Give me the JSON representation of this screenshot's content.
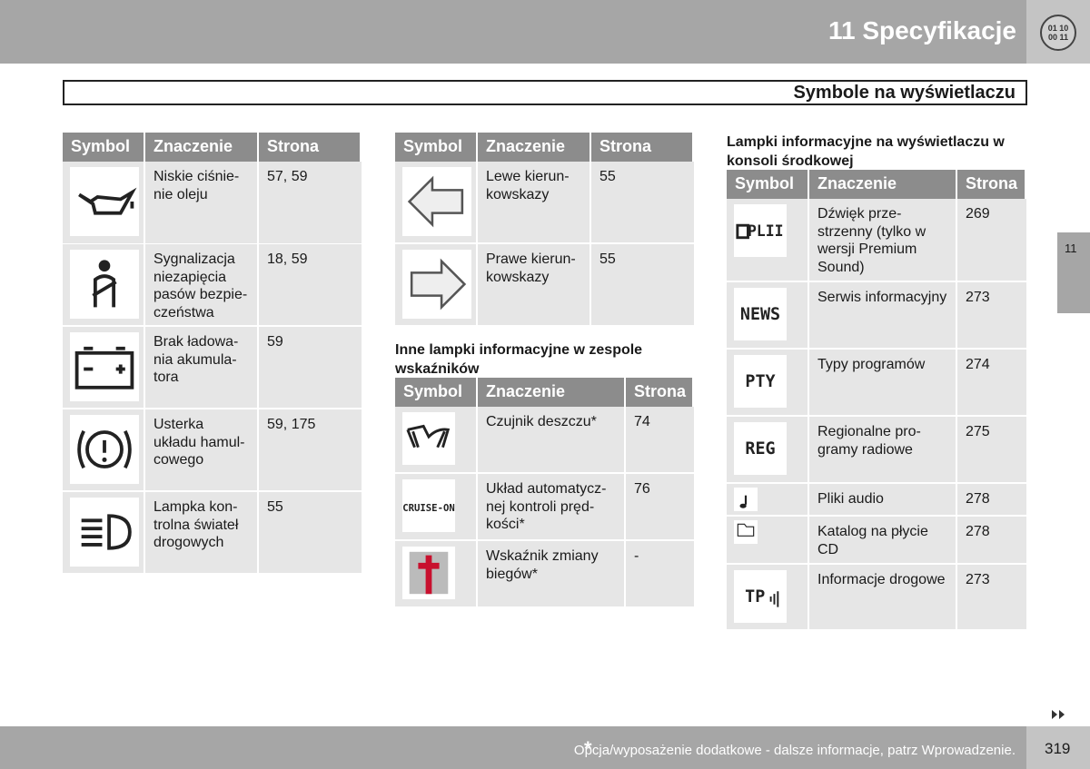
{
  "header": {
    "chapter": "11 Specyfikacje",
    "badge": [
      "01 10",
      "00 11"
    ],
    "section": "Symbole na wyświetlaczu"
  },
  "side_tab": "11",
  "headings": [
    "Inne lampki informacyjne w zespole\nwskaźników",
    "Lampki informacyjne na wyświetlaczu w\nkonsoli środkowej"
  ],
  "tables": [
    {
      "headers": [
        "Symbol",
        "Znaczenie",
        "Strona"
      ],
      "rows": [
        {
          "meaning": "Niskie ciśnie-\nnie oleju",
          "page": "57, 59"
        },
        {
          "meaning": "Sygnalizacja\nniezapięcia\npasów bezpie-\nczeństwa",
          "page": "18, 59"
        },
        {
          "meaning": "Brak ładowa-\nnia akumula-\ntora",
          "page": "59"
        },
        {
          "meaning": "Usterka\nukładu hamul-\ncowego",
          "page": "59, 175"
        },
        {
          "meaning": "Lampka kon-\ntrolna świateł\ndrogowych",
          "page": "55"
        }
      ]
    },
    {
      "headers": [
        "Symbol",
        "Znaczenie",
        "Strona"
      ],
      "rows": [
        {
          "meaning": "Lewe kierun-\nkowskazy",
          "page": "55"
        },
        {
          "meaning": "Prawe kierun-\nkowskazy",
          "page": "55"
        }
      ]
    },
    {
      "headers": [
        "Symbol",
        "Znaczenie",
        "Strona"
      ],
      "rows": [
        {
          "meaning": "Czujnik deszczu*",
          "page": "74"
        },
        {
          "meaning": "Układ automatycz-\nnej kontroli pręd-\nkości*",
          "page": "76",
          "icon_text": "CRUISE-ON"
        },
        {
          "meaning": "Wskaźnik zmiany\nbiegów*",
          "page": "-"
        }
      ]
    },
    {
      "headers": [
        "Symbol",
        "Znaczenie",
        "Strona"
      ],
      "rows": [
        {
          "meaning": "Dźwięk prze-\nstrzenny (tylko w\nwersji Premium\nSound)",
          "page": "269",
          "icon_text": "PLII"
        },
        {
          "meaning": "Serwis informacyjny",
          "page": "273",
          "icon_text": "NEWS"
        },
        {
          "meaning": "Typy programów",
          "page": "274",
          "icon_text": "PTY"
        },
        {
          "meaning": "Regionalne pro-\ngramy radiowe",
          "page": "275",
          "icon_text": "REG"
        },
        {
          "meaning": "Pliki audio",
          "page": "278"
        },
        {
          "meaning": "Katalog na płycie\nCD",
          "page": "278"
        },
        {
          "meaning": "Informacje drogowe",
          "page": "273",
          "icon_text": "TP"
        }
      ]
    }
  ],
  "footer": {
    "star": "*",
    "note": "Opcja/wyposażenie dodatkowe - dalsze informacje, patrz Wprowadzenie.",
    "page": "319"
  }
}
